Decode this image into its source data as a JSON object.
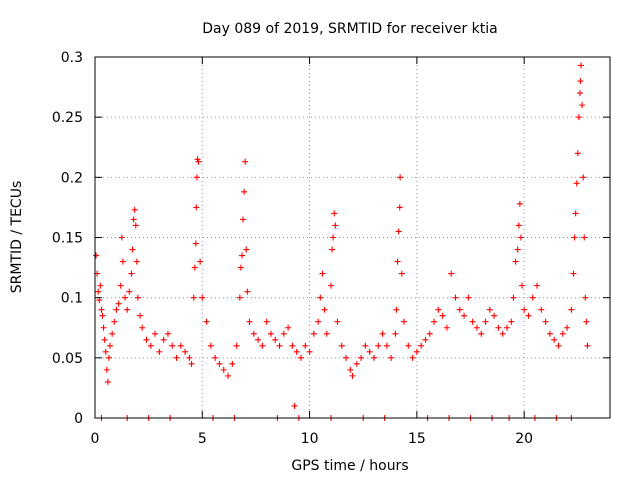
{
  "chart_data": {
    "type": "scatter",
    "title": "Day 089 of 2019, SRMTID for receiver ktia",
    "xlabel": "GPS time / hours",
    "ylabel": "SRMTID / TECUs",
    "xlim": [
      0,
      24
    ],
    "ylim": [
      0,
      0.3
    ],
    "x_ticks": [
      0,
      5,
      10,
      15,
      20
    ],
    "x_tick_labels": [
      "0",
      "5",
      "10",
      "15",
      "20"
    ],
    "y_ticks": [
      0,
      0.05,
      0.1,
      0.15,
      0.2,
      0.25,
      0.3
    ],
    "y_tick_labels": [
      "0",
      "0.05",
      "0.1",
      "0.15",
      "0.2",
      "0.25",
      "0.3"
    ],
    "grid": true,
    "marker": "plus",
    "series": [
      {
        "name": "SRMTID",
        "color": "#ff0000",
        "points": [
          [
            0.05,
            0.135
          ],
          [
            0.1,
            0.12
          ],
          [
            0.15,
            0.105
          ],
          [
            0.2,
            0.098
          ],
          [
            0.25,
            0.11
          ],
          [
            0.3,
            0.09
          ],
          [
            0.35,
            0.085
          ],
          [
            0.4,
            0.075
          ],
          [
            0.45,
            0.065
          ],
          [
            0.5,
            0.055
          ],
          [
            0.55,
            0.04
          ],
          [
            0.6,
            0.03
          ],
          [
            0.65,
            0.05
          ],
          [
            0.7,
            0.06
          ],
          [
            0.8,
            0.07
          ],
          [
            0.9,
            0.08
          ],
          [
            1.0,
            0.09
          ],
          [
            1.1,
            0.095
          ],
          [
            1.2,
            0.11
          ],
          [
            1.25,
            0.15
          ],
          [
            1.3,
            0.13
          ],
          [
            1.4,
            0.1
          ],
          [
            1.5,
            0.09
          ],
          [
            1.6,
            0.105
          ],
          [
            1.7,
            0.12
          ],
          [
            1.75,
            0.14
          ],
          [
            1.8,
            0.165
          ],
          [
            1.85,
            0.173
          ],
          [
            1.9,
            0.16
          ],
          [
            1.95,
            0.13
          ],
          [
            2.0,
            0.1
          ],
          [
            2.1,
            0.085
          ],
          [
            2.2,
            0.075
          ],
          [
            2.4,
            0.065
          ],
          [
            2.6,
            0.06
          ],
          [
            2.8,
            0.07
          ],
          [
            3.0,
            0.055
          ],
          [
            3.2,
            0.065
          ],
          [
            3.4,
            0.07
          ],
          [
            3.6,
            0.06
          ],
          [
            3.8,
            0.05
          ],
          [
            4.0,
            0.06
          ],
          [
            4.2,
            0.055
          ],
          [
            4.4,
            0.05
          ],
          [
            4.5,
            0.045
          ],
          [
            4.6,
            0.1
          ],
          [
            4.65,
            0.125
          ],
          [
            4.7,
            0.145
          ],
          [
            4.72,
            0.175
          ],
          [
            4.75,
            0.2
          ],
          [
            4.78,
            0.215
          ],
          [
            4.82,
            0.213
          ],
          [
            4.9,
            0.13
          ],
          [
            5.0,
            0.1
          ],
          [
            5.2,
            0.08
          ],
          [
            5.4,
            0.06
          ],
          [
            5.6,
            0.05
          ],
          [
            5.8,
            0.045
          ],
          [
            6.0,
            0.04
          ],
          [
            6.2,
            0.035
          ],
          [
            6.4,
            0.045
          ],
          [
            6.6,
            0.06
          ],
          [
            6.75,
            0.1
          ],
          [
            6.8,
            0.125
          ],
          [
            6.85,
            0.135
          ],
          [
            6.9,
            0.165
          ],
          [
            6.95,
            0.188
          ],
          [
            7.0,
            0.213
          ],
          [
            7.05,
            0.14
          ],
          [
            7.1,
            0.105
          ],
          [
            7.2,
            0.08
          ],
          [
            7.4,
            0.07
          ],
          [
            7.6,
            0.065
          ],
          [
            7.8,
            0.06
          ],
          [
            8.0,
            0.08
          ],
          [
            8.2,
            0.07
          ],
          [
            8.4,
            0.065
          ],
          [
            8.6,
            0.06
          ],
          [
            8.8,
            0.07
          ],
          [
            9.0,
            0.075
          ],
          [
            9.2,
            0.06
          ],
          [
            9.3,
            0.01
          ],
          [
            9.4,
            0.055
          ],
          [
            9.6,
            0.05
          ],
          [
            9.8,
            0.06
          ],
          [
            10.0,
            0.055
          ],
          [
            10.2,
            0.07
          ],
          [
            10.4,
            0.08
          ],
          [
            10.5,
            0.1
          ],
          [
            10.6,
            0.12
          ],
          [
            10.7,
            0.09
          ],
          [
            10.8,
            0.07
          ],
          [
            11.0,
            0.11
          ],
          [
            11.05,
            0.14
          ],
          [
            11.1,
            0.15
          ],
          [
            11.15,
            0.17
          ],
          [
            11.2,
            0.16
          ],
          [
            11.3,
            0.08
          ],
          [
            11.5,
            0.06
          ],
          [
            11.7,
            0.05
          ],
          [
            11.9,
            0.04
          ],
          [
            12.0,
            0.035
          ],
          [
            12.2,
            0.045
          ],
          [
            12.4,
            0.05
          ],
          [
            12.6,
            0.06
          ],
          [
            12.8,
            0.055
          ],
          [
            13.0,
            0.05
          ],
          [
            13.2,
            0.06
          ],
          [
            13.4,
            0.07
          ],
          [
            13.6,
            0.06
          ],
          [
            13.8,
            0.05
          ],
          [
            14.0,
            0.07
          ],
          [
            14.05,
            0.09
          ],
          [
            14.1,
            0.13
          ],
          [
            14.15,
            0.155
          ],
          [
            14.2,
            0.175
          ],
          [
            14.22,
            0.2
          ],
          [
            14.3,
            0.12
          ],
          [
            14.4,
            0.08
          ],
          [
            14.6,
            0.06
          ],
          [
            14.8,
            0.05
          ],
          [
            15.0,
            0.055
          ],
          [
            15.2,
            0.06
          ],
          [
            15.4,
            0.065
          ],
          [
            15.6,
            0.07
          ],
          [
            15.8,
            0.08
          ],
          [
            16.0,
            0.09
          ],
          [
            16.2,
            0.085
          ],
          [
            16.4,
            0.075
          ],
          [
            16.6,
            0.12
          ],
          [
            16.8,
            0.1
          ],
          [
            17.0,
            0.09
          ],
          [
            17.2,
            0.085
          ],
          [
            17.4,
            0.1
          ],
          [
            17.6,
            0.08
          ],
          [
            17.8,
            0.075
          ],
          [
            18.0,
            0.07
          ],
          [
            18.2,
            0.08
          ],
          [
            18.4,
            0.09
          ],
          [
            18.6,
            0.085
          ],
          [
            18.8,
            0.075
          ],
          [
            19.0,
            0.07
          ],
          [
            19.2,
            0.075
          ],
          [
            19.4,
            0.08
          ],
          [
            19.5,
            0.1
          ],
          [
            19.6,
            0.13
          ],
          [
            19.7,
            0.14
          ],
          [
            19.75,
            0.16
          ],
          [
            19.8,
            0.178
          ],
          [
            19.85,
            0.15
          ],
          [
            19.9,
            0.11
          ],
          [
            20.0,
            0.09
          ],
          [
            20.2,
            0.085
          ],
          [
            20.4,
            0.1
          ],
          [
            20.6,
            0.11
          ],
          [
            20.8,
            0.09
          ],
          [
            21.0,
            0.08
          ],
          [
            21.2,
            0.07
          ],
          [
            21.4,
            0.065
          ],
          [
            21.6,
            0.06
          ],
          [
            21.8,
            0.07
          ],
          [
            22.0,
            0.075
          ],
          [
            22.2,
            0.09
          ],
          [
            22.3,
            0.12
          ],
          [
            22.35,
            0.15
          ],
          [
            22.4,
            0.17
          ],
          [
            22.45,
            0.195
          ],
          [
            22.5,
            0.22
          ],
          [
            22.55,
            0.25
          ],
          [
            22.6,
            0.27
          ],
          [
            22.62,
            0.28
          ],
          [
            22.65,
            0.293
          ],
          [
            22.7,
            0.26
          ],
          [
            22.75,
            0.2
          ],
          [
            22.8,
            0.15
          ],
          [
            22.85,
            0.1
          ],
          [
            22.9,
            0.08
          ],
          [
            22.95,
            0.06
          ],
          [
            0.3,
            0.0
          ],
          [
            1.5,
            0.0
          ],
          [
            2.5,
            0.0
          ],
          [
            3.5,
            0.0
          ],
          [
            5.5,
            0.0
          ],
          [
            6.5,
            0.0
          ],
          [
            8.5,
            0.0
          ],
          [
            9.5,
            0.0
          ],
          [
            11.0,
            0.0
          ],
          [
            12.5,
            0.0
          ],
          [
            13.5,
            0.0
          ],
          [
            15.5,
            0.0
          ],
          [
            16.5,
            0.0
          ],
          [
            17.5,
            0.0
          ],
          [
            18.5,
            0.0
          ],
          [
            19.3,
            0.0
          ],
          [
            20.5,
            0.0
          ],
          [
            21.5,
            0.0
          ],
          [
            22.2,
            0.0
          ]
        ]
      }
    ]
  }
}
